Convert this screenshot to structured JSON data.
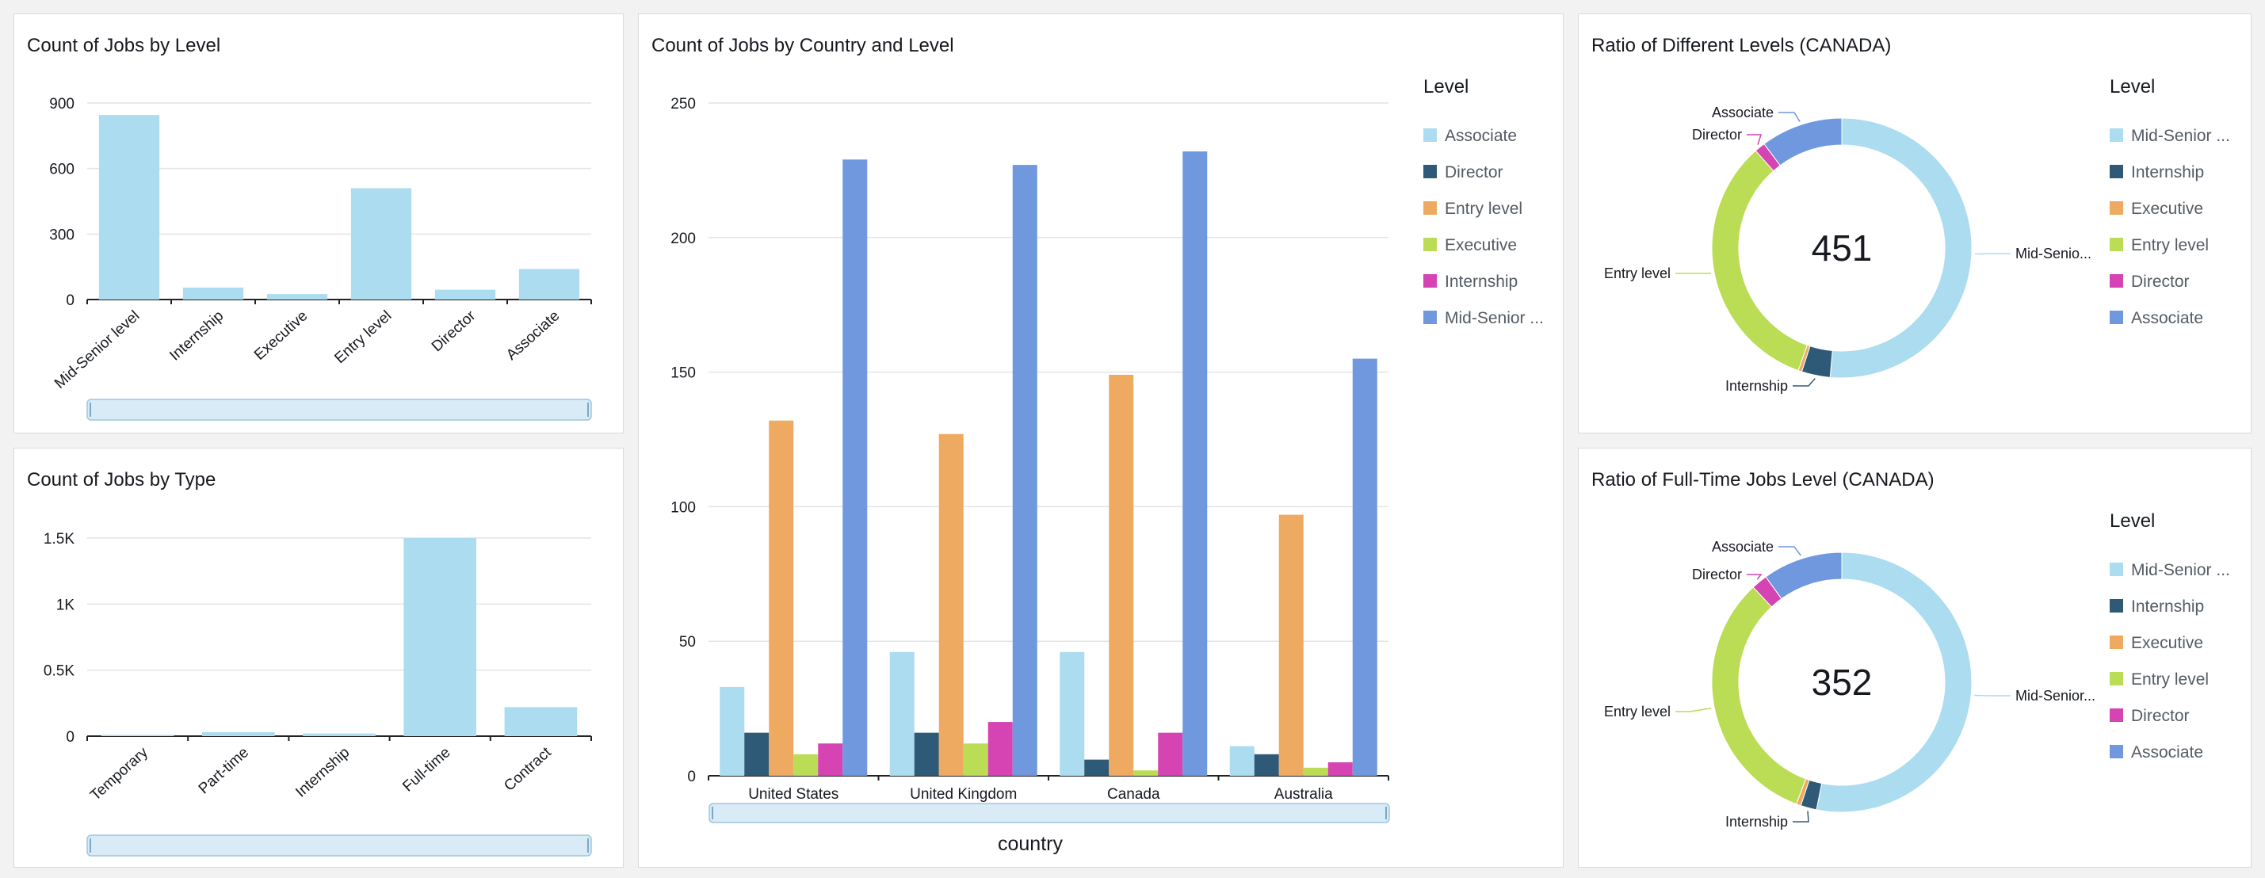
{
  "colors": {
    "associate": "#acdcef",
    "director": "#2e5a77",
    "entry": "#edaa60",
    "executive": "#bbdd55",
    "internship": "#d643b3",
    "midsenior": "#6f98de",
    "single": "#acdcef"
  },
  "chart_data": [
    {
      "id": "jobs_by_level",
      "type": "bar",
      "title": "Count of Jobs by Level",
      "categories": [
        "Mid-Senior level",
        "Internship",
        "Executive",
        "Entry level",
        "Director",
        "Associate"
      ],
      "values": [
        845,
        55,
        25,
        510,
        45,
        140
      ],
      "ylim": [
        0,
        900
      ],
      "yticks": [
        {
          "value": 0,
          "label": "0"
        },
        {
          "value": 300,
          "label": "300"
        },
        {
          "value": 600,
          "label": "600"
        },
        {
          "value": 900,
          "label": "900"
        }
      ],
      "grid": true
    },
    {
      "id": "jobs_by_type",
      "type": "bar",
      "title": "Count of Jobs by Type",
      "categories": [
        "Temporary",
        "Part-time",
        "Internship",
        "Full-time",
        "Contract"
      ],
      "values": [
        10,
        30,
        20,
        1500,
        220
      ],
      "ylim": [
        0,
        1500
      ],
      "yticks": [
        {
          "value": 0,
          "label": "0"
        },
        {
          "value": 500,
          "label": "0.5K"
        },
        {
          "value": 1000,
          "label": "1K"
        },
        {
          "value": 1500,
          "label": "1.5K"
        }
      ],
      "grid": true
    },
    {
      "id": "jobs_by_country_level",
      "type": "bar",
      "title": "Count of Jobs by Country and Level",
      "xlabel": "country",
      "categories": [
        "United States",
        "United Kingdom",
        "Canada",
        "Australia"
      ],
      "legend_title": "Level",
      "legend_position": "right",
      "series": [
        {
          "name": "Associate",
          "legend": "Associate",
          "color_key": "associate",
          "values": [
            33,
            46,
            46,
            11
          ]
        },
        {
          "name": "Director",
          "legend": "Director",
          "color_key": "director",
          "values": [
            16,
            16,
            6,
            8
          ]
        },
        {
          "name": "Entry level",
          "legend": "Entry level",
          "color_key": "entry",
          "values": [
            132,
            127,
            149,
            97
          ]
        },
        {
          "name": "Executive",
          "legend": "Executive",
          "color_key": "executive",
          "values": [
            8,
            12,
            2,
            3
          ]
        },
        {
          "name": "Internship",
          "legend": "Internship",
          "color_key": "internship",
          "values": [
            12,
            20,
            16,
            5
          ]
        },
        {
          "name": "Mid-Senior level",
          "legend": "Mid-Senior ...",
          "color_key": "midsenior",
          "values": [
            229,
            227,
            232,
            155
          ]
        }
      ],
      "ylim": [
        0,
        250
      ],
      "yticks": [
        {
          "value": 0,
          "label": "0"
        },
        {
          "value": 50,
          "label": "50"
        },
        {
          "value": 100,
          "label": "100"
        },
        {
          "value": 150,
          "label": "150"
        },
        {
          "value": 200,
          "label": "200"
        },
        {
          "value": 250,
          "label": "250"
        }
      ],
      "grid": true
    },
    {
      "id": "ratio_levels_canada",
      "type": "pie",
      "title": "Ratio of Different Levels (CANADA)",
      "center_label": "451",
      "legend_title": "Level",
      "legend_position": "right",
      "slices": [
        {
          "name": "Mid-Senior level",
          "legend": "Mid-Senior ...",
          "label": "Mid-Senio...",
          "color_key": "midsenior_light",
          "value": 232
        },
        {
          "name": "Internship",
          "legend": "Internship",
          "label": "Internship",
          "color_key": "director",
          "value": 16
        },
        {
          "name": "Executive",
          "legend": "Executive",
          "label": "",
          "color_key": "entry",
          "value": 2
        },
        {
          "name": "Entry level",
          "legend": "Entry level",
          "label": "Entry level",
          "color_key": "executive",
          "value": 149
        },
        {
          "name": "Director",
          "legend": "Director",
          "label": "Director",
          "color_key": "internship",
          "value": 6
        },
        {
          "name": "Associate",
          "legend": "Associate",
          "label": "Associate",
          "color_key": "midsenior",
          "value": 46
        }
      ]
    },
    {
      "id": "ratio_fulltime_canada",
      "type": "pie",
      "title": "Ratio of Full-Time Jobs Level (CANADA)",
      "center_label": "352",
      "legend_title": "Level",
      "legend_position": "right",
      "slices": [
        {
          "name": "Mid-Senior level",
          "legend": "Mid-Senior ...",
          "label": "Mid-Senior...",
          "color_key": "midsenior_light",
          "value": 187
        },
        {
          "name": "Internship",
          "legend": "Internship",
          "label": "Internship",
          "color_key": "director",
          "value": 7
        },
        {
          "name": "Executive",
          "legend": "Executive",
          "label": "",
          "color_key": "entry",
          "value": 2
        },
        {
          "name": "Entry level",
          "legend": "Entry level",
          "label": "Entry level",
          "color_key": "executive",
          "value": 114
        },
        {
          "name": "Director",
          "legend": "Director",
          "label": "Director",
          "color_key": "internship",
          "value": 7
        },
        {
          "name": "Associate",
          "legend": "Associate",
          "label": "Associate",
          "color_key": "midsenior",
          "value": 35
        }
      ]
    }
  ]
}
